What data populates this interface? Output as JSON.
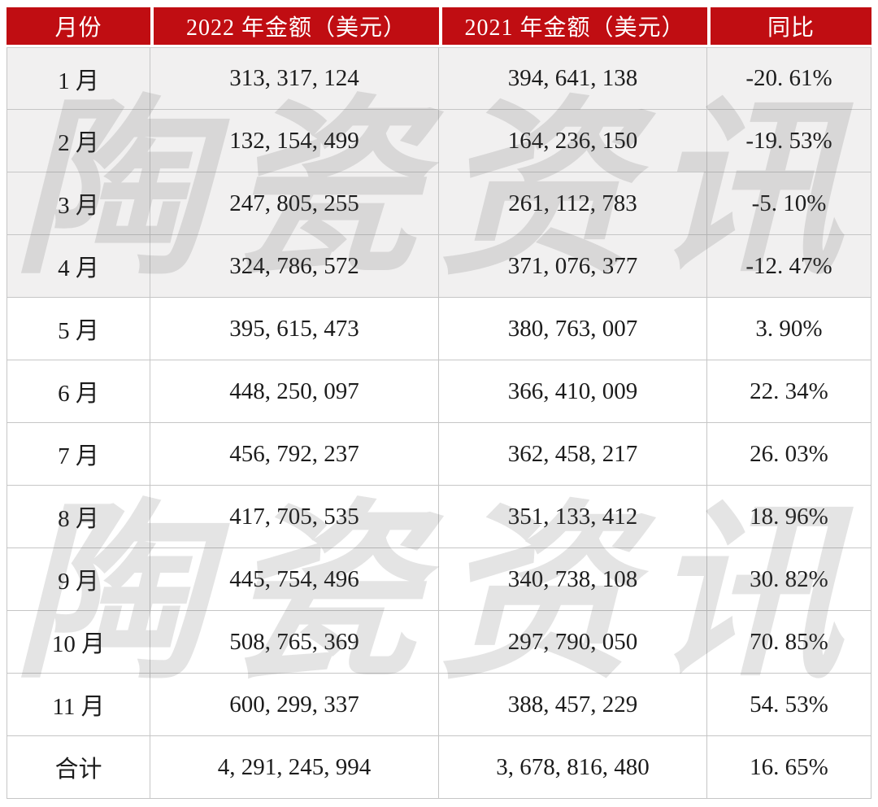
{
  "watermark": {
    "text": "陶瓷资讯"
  },
  "theme": {
    "header_bg": "#c00d12",
    "header_text": "#ffffff",
    "shaded_row_bg": "#f1f0f0",
    "row_bg": "#ffffff",
    "border_color": "#c6c6c6",
    "body_text": "#1c1c1c"
  },
  "table": {
    "columns": [
      "月份",
      "2022 年金额（美元）",
      "2021 年金额（美元）",
      "同比"
    ],
    "rows": [
      {
        "month": "1 月",
        "amount_2022": "313, 317, 124",
        "amount_2021": "394, 641, 138",
        "yoy": "-20. 61%"
      },
      {
        "month": "2 月",
        "amount_2022": "132, 154, 499",
        "amount_2021": "164, 236, 150",
        "yoy": "-19. 53%"
      },
      {
        "month": "3 月",
        "amount_2022": "247, 805, 255",
        "amount_2021": "261, 112, 783",
        "yoy": "-5. 10%"
      },
      {
        "month": "4 月",
        "amount_2022": "324, 786, 572",
        "amount_2021": "371, 076, 377",
        "yoy": "-12. 47%"
      },
      {
        "month": "5 月",
        "amount_2022": "395, 615, 473",
        "amount_2021": "380, 763, 007",
        "yoy": "3. 90%"
      },
      {
        "month": "6 月",
        "amount_2022": "448, 250, 097",
        "amount_2021": "366, 410, 009",
        "yoy": "22. 34%"
      },
      {
        "month": "7 月",
        "amount_2022": "456, 792, 237",
        "amount_2021": "362, 458, 217",
        "yoy": "26. 03%"
      },
      {
        "month": "8 月",
        "amount_2022": "417, 705, 535",
        "amount_2021": "351, 133, 412",
        "yoy": "18. 96%"
      },
      {
        "month": "9 月",
        "amount_2022": "445, 754, 496",
        "amount_2021": "340, 738, 108",
        "yoy": "30. 82%"
      },
      {
        "month": "10 月",
        "amount_2022": "508, 765, 369",
        "amount_2021": "297, 790, 050",
        "yoy": "70. 85%"
      },
      {
        "month": "11 月",
        "amount_2022": "600, 299, 337",
        "amount_2021": "388, 457, 229",
        "yoy": "54. 53%"
      },
      {
        "month": "合计",
        "amount_2022": "4, 291, 245, 994",
        "amount_2021": "3, 678, 816, 480",
        "yoy": "16. 65%"
      }
    ]
  }
}
